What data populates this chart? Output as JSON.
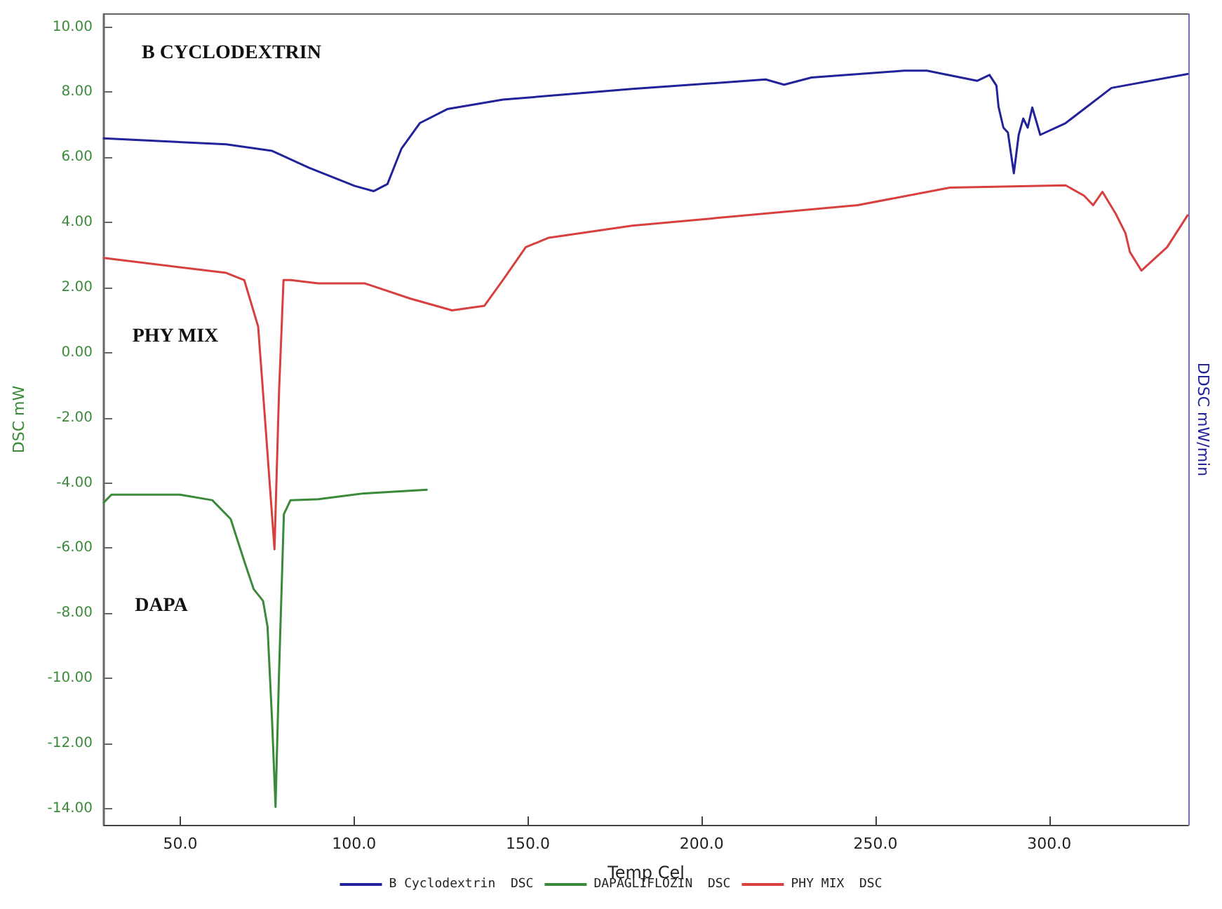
{
  "chart_data": {
    "type": "line",
    "xlabel": "Temp Cel",
    "ylabel": "DSC mW",
    "y2label": "DDSC mW/min",
    "xlim": [
      28,
      340
    ],
    "xticks": [
      {
        "value": 50,
        "label": "50.0"
      },
      {
        "value": 100,
        "label": "100.0"
      },
      {
        "value": 150,
        "label": "150.0"
      },
      {
        "value": 200,
        "label": "200.0"
      },
      {
        "value": 250,
        "label": "250.0"
      },
      {
        "value": 300,
        "label": "300.0"
      }
    ],
    "ylim": [
      -14.5,
      10.4
    ],
    "yticks": [
      {
        "value": -14,
        "label": "-14.00"
      },
      {
        "value": -12,
        "label": "-12.00"
      },
      {
        "value": -10,
        "label": "-10.00"
      },
      {
        "value": -8,
        "label": "-8.00"
      },
      {
        "value": -6,
        "label": "-6.00"
      },
      {
        "value": -4,
        "label": "-4.00"
      },
      {
        "value": -2,
        "label": "-2.00"
      },
      {
        "value": 0,
        "label": "0.00"
      },
      {
        "value": 2,
        "label": "2.00"
      },
      {
        "value": 4,
        "label": "4.00"
      },
      {
        "value": 6,
        "label": "6.00"
      },
      {
        "value": 8,
        "label": "8.00"
      },
      {
        "value": 10,
        "label": "10.00"
      }
    ],
    "grid": false,
    "legend": "bottom",
    "marker": "none",
    "line_style": "solid",
    "series": [
      {
        "name": "B Cyclodextrin  DSC",
        "color": "#22229a",
        "x": [
          28,
          63.2,
          76.3,
          87,
          100.2,
          105.6,
          109.6,
          113.6,
          118.9,
          126.8,
          142.8,
          180,
          218.4,
          223.7,
          231.6,
          258.2,
          264.8,
          279.3,
          282.8,
          284.8,
          285.4,
          286.8,
          288.1,
          289.8,
          291.2,
          292.5,
          293.8,
          295.1,
          297.4,
          304.7,
          317.9,
          339.8
        ],
        "values": [
          6.58,
          6.4,
          6.2,
          5.68,
          5.12,
          4.96,
          5.18,
          6.26,
          7.05,
          7.48,
          7.77,
          8.1,
          8.39,
          8.23,
          8.45,
          8.66,
          8.66,
          8.35,
          8.53,
          8.2,
          7.55,
          6.91,
          6.76,
          5.51,
          6.69,
          7.19,
          6.91,
          7.53,
          6.69,
          7.05,
          8.13,
          8.56
        ]
      },
      {
        "name": "DAPAGLIFLOZIN  DSC",
        "color": "#3a8a3a",
        "x": [
          28,
          30.2,
          49.9,
          59.2,
          64.5,
          68.4,
          71.1,
          73.8,
          75.1,
          76.4,
          77.4,
          78.4,
          79.8,
          81.7,
          89.7,
          103,
          120.9
        ],
        "values": [
          -4.6,
          -4.36,
          -4.36,
          -4.53,
          -5.11,
          -6.4,
          -7.26,
          -7.62,
          -8.42,
          -11.29,
          -13.95,
          -9.86,
          -4.96,
          -4.53,
          -4.5,
          -4.32,
          -4.21
        ]
      },
      {
        "name": "PHY MIX  DSC",
        "color": "#d84040",
        "x": [
          28,
          63.2,
          68.4,
          72.4,
          74.4,
          77.1,
          78.4,
          79.7,
          81.7,
          89.7,
          103,
          116.2,
          128.2,
          137.5,
          142.8,
          149.4,
          156,
          180,
          244.9,
          271.4,
          304.7,
          310,
          312.6,
          315.3,
          319.2,
          321.9,
          323.2,
          326.5,
          333.9,
          339.8
        ],
        "values": [
          2.91,
          2.45,
          2.23,
          0.8,
          -2.08,
          -6.04,
          -1.22,
          2.23,
          2.23,
          2.13,
          2.13,
          1.66,
          1.3,
          1.44,
          2.23,
          3.24,
          3.53,
          3.9,
          4.53,
          5.07,
          5.14,
          4.82,
          4.53,
          4.94,
          4.25,
          3.67,
          3.09,
          2.52,
          3.24,
          4.22
        ]
      }
    ],
    "annotations": [
      "B CYCLODEXTRIN",
      "PHY MIX",
      "DAPA"
    ]
  }
}
